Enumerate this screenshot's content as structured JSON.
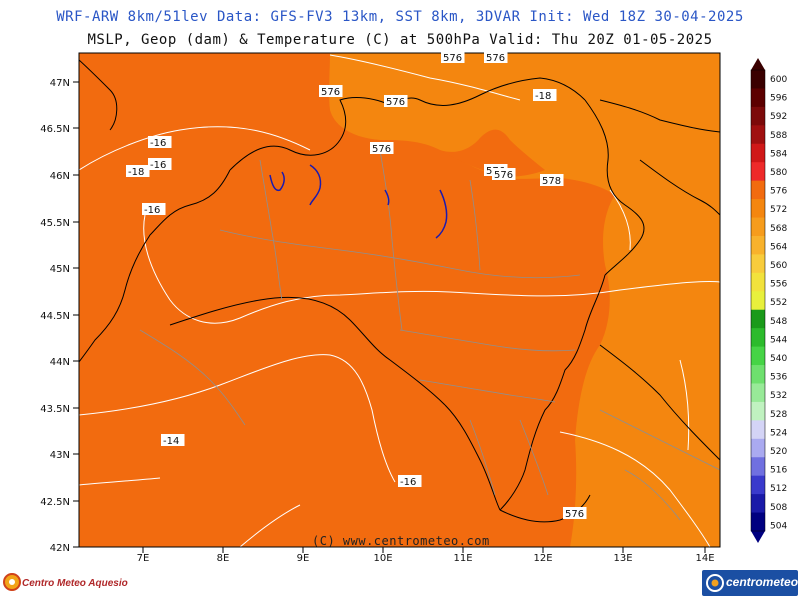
{
  "header": {
    "line1": "WRF-ARW 8km/51lev  Data: GFS-FV3 13km, SST 8km, 3DVAR  Init: Wed 18Z 30-04-2025",
    "line2": "MSLP, Geop (dam) & Temperature (C) at 500hPa  Valid: Thu 20Z 01-05-2025"
  },
  "map": {
    "lat_labels": [
      "47N",
      "46.5N",
      "46N",
      "45.5N",
      "45N",
      "44.5N",
      "44N",
      "43.5N",
      "43N",
      "42.5N",
      "42N"
    ],
    "lon_labels": [
      "7E",
      "8E",
      "9E",
      "10E",
      "11E",
      "12E",
      "13E",
      "14E"
    ],
    "watermark": "(C) www.centrometeo.com",
    "contour_labels": {
      "geop": [
        "576",
        "576",
        "576",
        "576",
        "576",
        "576",
        "576",
        "578",
        "576"
      ],
      "temp": [
        "-18",
        "-16",
        "-16",
        "-18",
        "-16",
        "-14",
        "-16"
      ]
    },
    "colors": {
      "field_dominant": "#f26b0f",
      "field_warmer": "#f4860f",
      "contour_line": "#ffffff",
      "border_line": "#000000",
      "inner_border_line": "#8f8f8f",
      "lake_line": "#1a1ab0"
    }
  },
  "colorbar": {
    "labels": [
      "600",
      "596",
      "592",
      "588",
      "584",
      "580",
      "576",
      "572",
      "568",
      "564",
      "560",
      "556",
      "552",
      "548",
      "544",
      "540",
      "536",
      "532",
      "528",
      "524",
      "520",
      "516",
      "512",
      "508",
      "504"
    ],
    "colors": [
      "#3a0000",
      "#5c0000",
      "#7c0a0a",
      "#a01010",
      "#d01818",
      "#ee2a2a",
      "#f26b0f",
      "#f4860f",
      "#f69c1c",
      "#f8b22c",
      "#f8cc3c",
      "#f2e23c",
      "#e8f03c",
      "#1a9a1a",
      "#2cbb2c",
      "#46d446",
      "#6ee06e",
      "#98ea98",
      "#c0f2c0",
      "#d4d4f6",
      "#aaaaf0",
      "#7070e0",
      "#3a3acc",
      "#1a1aa8",
      "#000080"
    ]
  },
  "logos": {
    "left": "Centro Meteo Aquesio",
    "right": "centrometeo"
  }
}
